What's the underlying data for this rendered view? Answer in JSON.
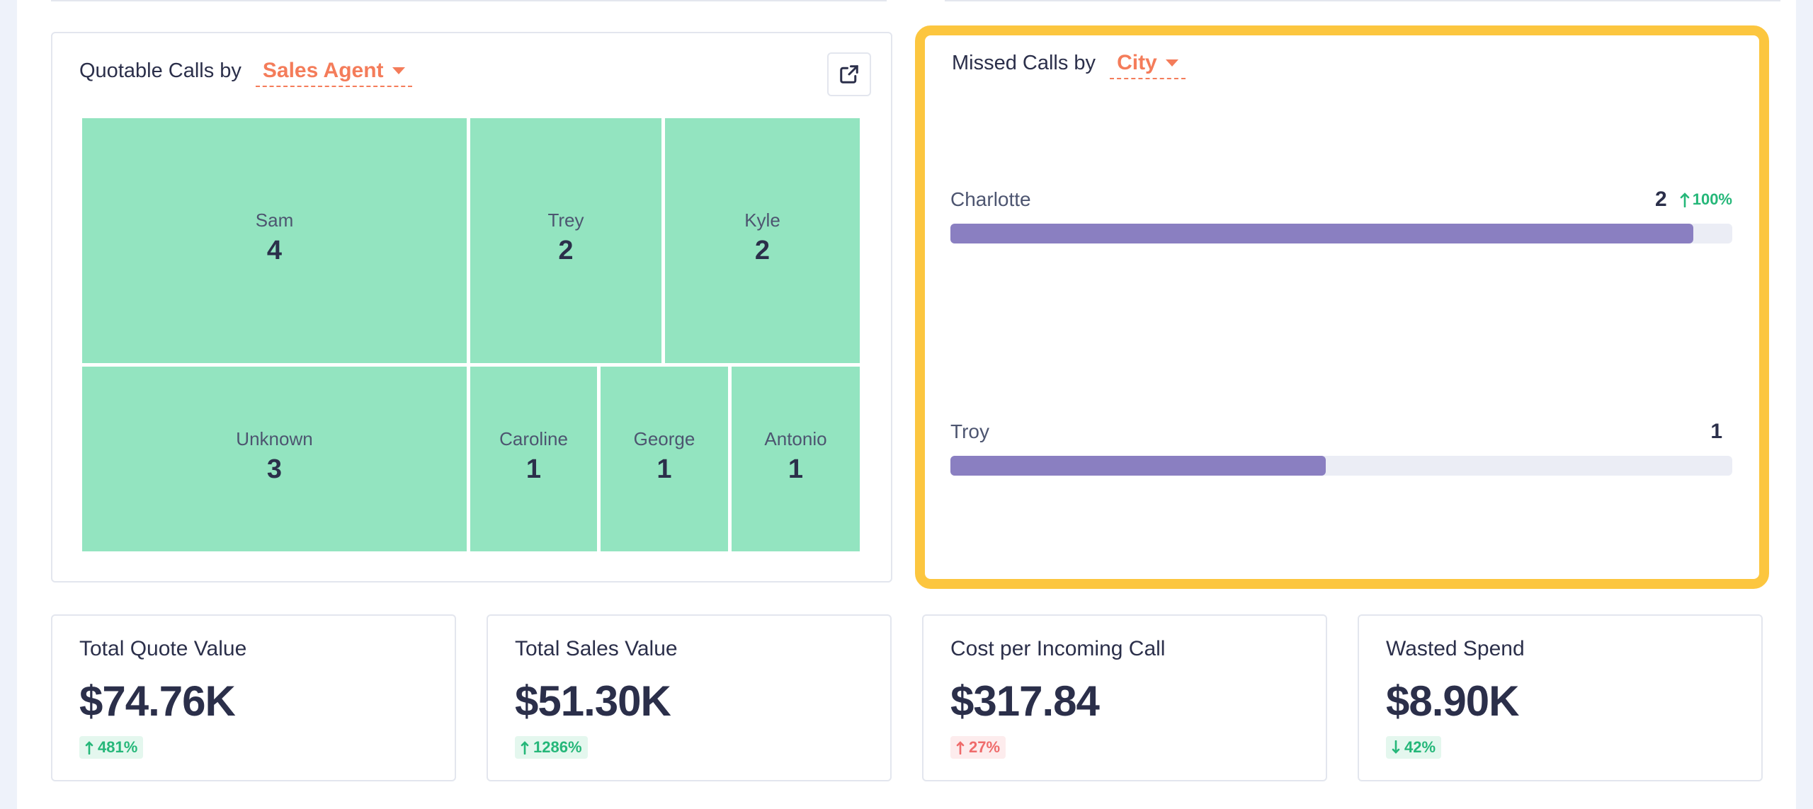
{
  "quotable_card": {
    "title_prefix": "Quotable Calls by",
    "dropdown_label": "Sales Agent",
    "open_external_icon": "external-link-icon"
  },
  "treemap": {
    "tiles": [
      {
        "name": "Sam",
        "value": "4"
      },
      {
        "name": "Trey",
        "value": "2"
      },
      {
        "name": "Kyle",
        "value": "2"
      },
      {
        "name": "Unknown",
        "value": "3"
      },
      {
        "name": "Caroline",
        "value": "1"
      },
      {
        "name": "George",
        "value": "1"
      },
      {
        "name": "Antonio",
        "value": "1"
      }
    ],
    "color": "#93e4c0"
  },
  "missed_card": {
    "title_prefix": "Missed Calls by",
    "dropdown_label": "City",
    "bars": [
      {
        "label": "Charlotte",
        "value": "2",
        "change": "100%",
        "fraction": 0.95
      },
      {
        "label": "Troy",
        "value": "1",
        "change": "",
        "fraction": 0.48
      }
    ],
    "bar_color": "#8a7fc1",
    "highlight_color": "#fcc63f"
  },
  "kpis": [
    {
      "title": "Total Quote Value",
      "value": "$74.76K",
      "change": "481%",
      "direction": "up",
      "tone": "green"
    },
    {
      "title": "Total Sales Value",
      "value": "$51.30K",
      "change": "1286%",
      "direction": "up",
      "tone": "green"
    },
    {
      "title": "Cost per Incoming Call",
      "value": "$317.84",
      "change": "27%",
      "direction": "up",
      "tone": "red"
    },
    {
      "title": "Wasted Spend",
      "value": "$8.90K",
      "change": "42%",
      "direction": "down",
      "tone": "green"
    }
  ],
  "colors": {
    "accent": "#f47c5a",
    "positive": "#25b779",
    "negative": "#ef6b6b"
  }
}
